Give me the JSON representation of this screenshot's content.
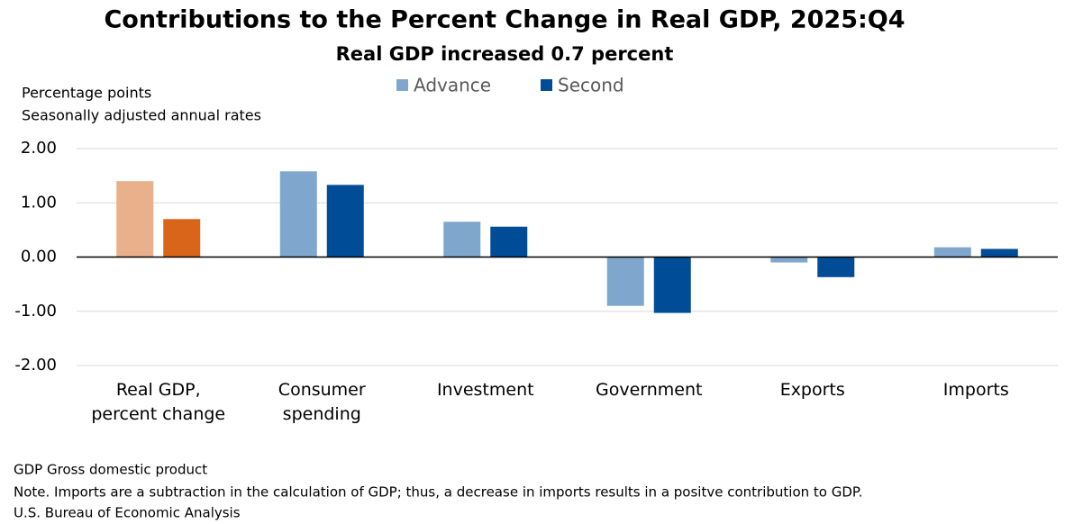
{
  "chart_data": {
    "type": "bar",
    "title": "Contributions to the Percent Change in Real GDP, 2025:Q4",
    "subtitle": "Real GDP increased 0.7 percent",
    "y_label": [
      "Percentage points",
      "Seasonally adjusted annual rates"
    ],
    "categories": [
      "Real GDP, percent change",
      "Consumer spending",
      "Investment",
      "Government",
      "Exports",
      "Imports"
    ],
    "series": [
      {
        "name": "Advance",
        "color": "#7fa7cd",
        "colors": [
          "#e9b08c",
          "#7fa7cd",
          "#7fa7cd",
          "#7fa7cd",
          "#7fa7cd",
          "#7fa7cd"
        ],
        "values": [
          1.4,
          1.58,
          0.65,
          -0.9,
          -0.1,
          0.18
        ]
      },
      {
        "name": "Second",
        "color": "#004c97",
        "colors": [
          "#d9651b",
          "#004c97",
          "#004c97",
          "#004c97",
          "#004c97",
          "#004c97"
        ],
        "values": [
          0.7,
          1.33,
          0.56,
          -1.03,
          -0.37,
          0.15
        ]
      }
    ],
    "ylim": [
      -2,
      2
    ],
    "yticks": [
      {
        "value": -2,
        "label": "-2.00"
      },
      {
        "value": -1,
        "label": "-1.00"
      },
      {
        "value": 0,
        "label": "0.00"
      },
      {
        "value": 1,
        "label": "1.00"
      },
      {
        "value": 2,
        "label": "2.00"
      }
    ],
    "grid": true,
    "notes": [
      "GDP Gross domestic product",
      "Note. Imports are a subtraction in the calculation of GDP; thus, a decrease in imports results in a positve contribution to GDP.",
      "U.S. Bureau of Economic Analysis"
    ]
  }
}
